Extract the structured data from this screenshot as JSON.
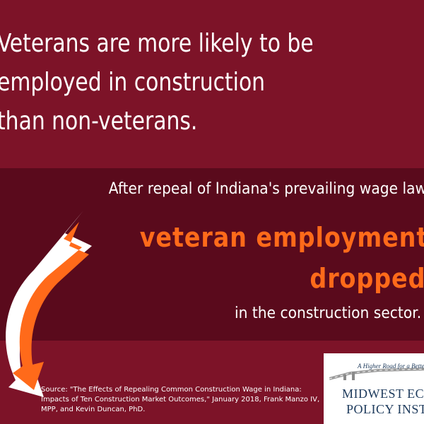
{
  "headline": {
    "line1": "Veterans are more likely to be",
    "line2": "employed in construction",
    "line3": "than non-veterans."
  },
  "panel": {
    "repeal_text": "After repeal of Indiana's prevailing wage law,",
    "emphasis_line1": "veteran employment",
    "emphasis_line2": "dropped",
    "sector_text": "in the construction sector."
  },
  "source": {
    "text": "Source: \"The Effects of Repealing Common Construction Wage in Indiana: Impacts of Ten Construction Market Outcomes,\" January 2018, Frank Manzo IV, MPP, and Kevin Duncan, PhD."
  },
  "logo": {
    "tagline": "A Higher Road for a Better Tomorrow",
    "name_line1": "MIDWEST ECONOMIC",
    "name_line2": "POLICY INSTITUTE"
  },
  "colors": {
    "background": "#7d1328",
    "panel": "#5a0a1c",
    "accent_orange": "#ff6a1a",
    "logo_navy": "#1d3a5c"
  },
  "icons": [
    "down-arrow-icon",
    "road-icon"
  ]
}
